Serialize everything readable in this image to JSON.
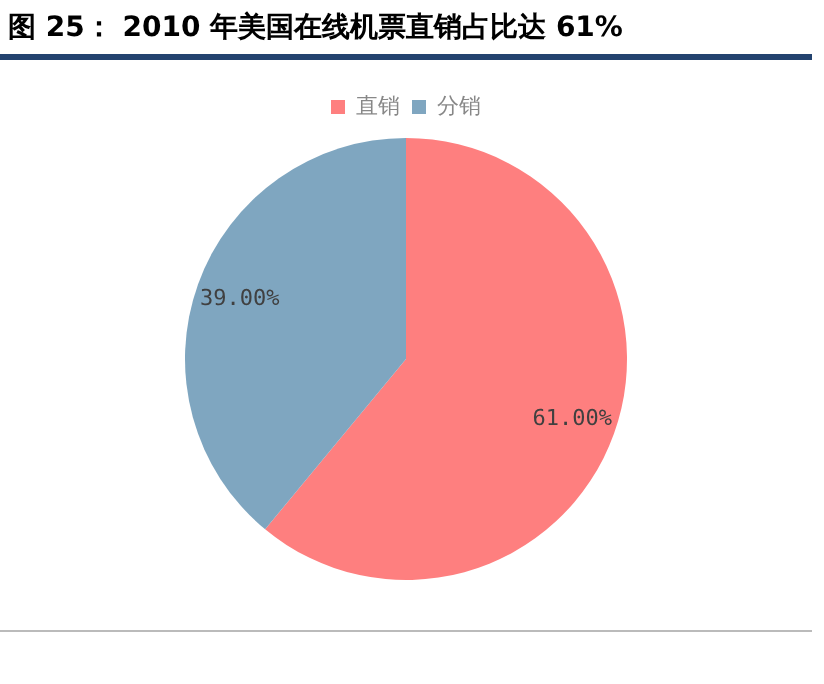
{
  "chart_data": {
    "type": "pie",
    "title": "图 25： 2010 年美国在线机票直销占比达 61%",
    "categories": [
      "直销",
      "分销"
    ],
    "values": [
      61,
      39
    ],
    "colors": [
      "#fe7f7f",
      "#7fa6c0"
    ],
    "value_labels": [
      "61.00%",
      "39.00%"
    ],
    "legend": "top"
  }
}
